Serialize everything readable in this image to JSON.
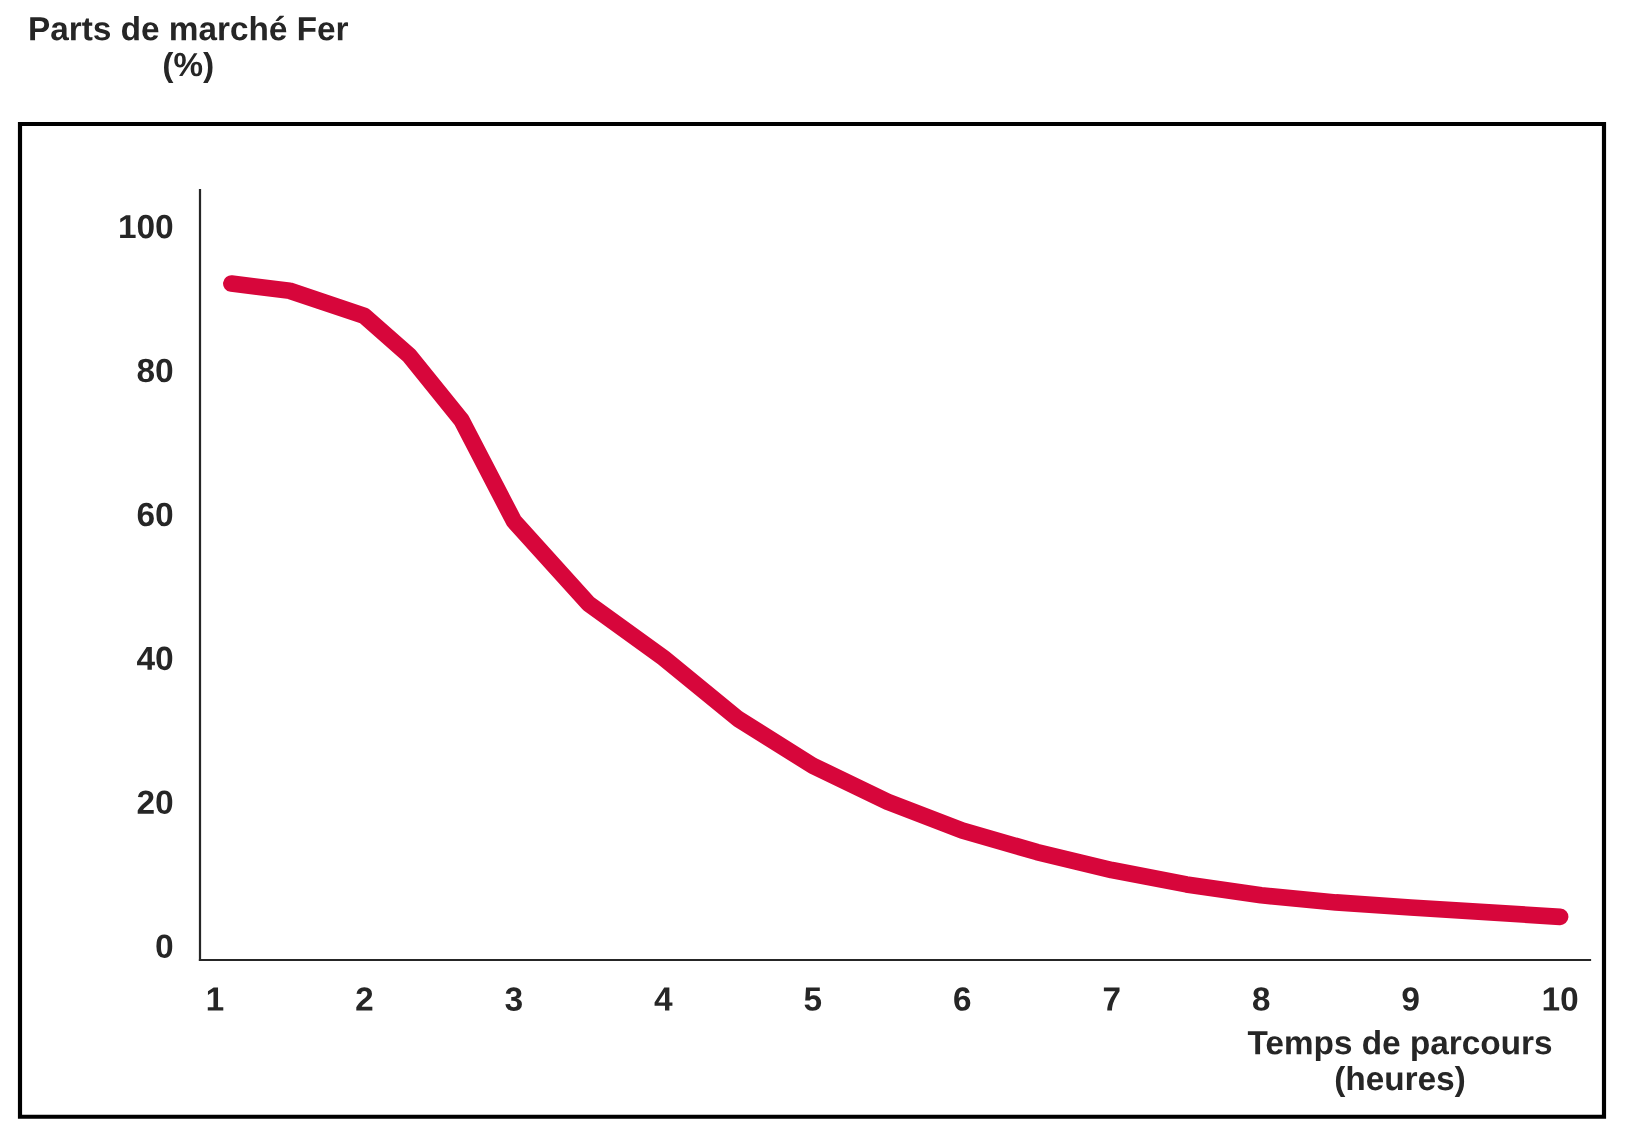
{
  "chart_data": {
    "type": "line",
    "ylabel": "Parts de marché Fer\n(%)",
    "xlabel": "Temps de parcours\n(heures)",
    "series": [
      {
        "color": "#d7063b",
        "x": [
          1.11,
          1.5,
          2,
          2.3,
          2.65,
          3,
          3.5,
          4,
          4.5,
          5,
          5.5,
          6,
          6.5,
          7,
          7.5,
          8,
          8.5,
          9,
          10
        ],
        "values": [
          92,
          91,
          87.5,
          82,
          73,
          59,
          47.5,
          40,
          31.5,
          25,
          20,
          16,
          13,
          10.5,
          8.5,
          7,
          6,
          5.3,
          4
        ]
      }
    ],
    "xlim": [
      0.9,
      10.2
    ],
    "ylim": [
      -2,
      105
    ],
    "xticks": [
      1,
      2,
      3,
      4,
      5,
      6,
      7,
      8,
      9,
      10
    ],
    "yticks": [
      0,
      20,
      40,
      60,
      80,
      100
    ],
    "grid": false,
    "legend": false,
    "marker": "none",
    "line_style": "solid"
  }
}
